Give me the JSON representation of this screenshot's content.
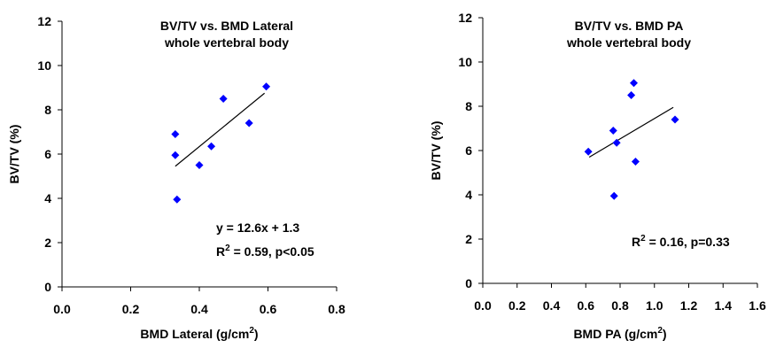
{
  "chart_data": [
    {
      "type": "scatter",
      "title": "BV/TV vs. BMD Lateral",
      "subtitle": "whole vertebral body",
      "xlabel": "BMD Lateral (g/cm²)",
      "ylabel": "BV/TV (%)",
      "xlim": [
        0,
        0.8
      ],
      "ylim": [
        0,
        12
      ],
      "xticks": [
        "0.0",
        "0.2",
        "0.4",
        "0.6",
        "0.8"
      ],
      "yticks": [
        "0",
        "2",
        "4",
        "6",
        "8",
        "10",
        "12"
      ],
      "points": [
        {
          "x": 0.33,
          "y": 6.9
        },
        {
          "x": 0.33,
          "y": 5.95
        },
        {
          "x": 0.335,
          "y": 3.95
        },
        {
          "x": 0.4,
          "y": 5.5
        },
        {
          "x": 0.435,
          "y": 6.35
        },
        {
          "x": 0.47,
          "y": 8.5
        },
        {
          "x": 0.545,
          "y": 7.4
        },
        {
          "x": 0.595,
          "y": 9.05
        }
      ],
      "trendline": {
        "x": [
          0.33,
          0.59
        ],
        "y": [
          5.45,
          8.75
        ]
      },
      "annotations": [
        "y = 12.6x + 1.3",
        "R² = 0.59, p<0.05"
      ],
      "marker_color": "#0000ff",
      "grid": false,
      "legend": "none"
    },
    {
      "type": "scatter",
      "title": "BV/TV vs. BMD PA",
      "subtitle": "whole vertebral body",
      "xlabel": "BMD PA (g/cm²)",
      "ylabel": "BV/TV (%)",
      "xlim": [
        0,
        1.6
      ],
      "ylim": [
        0,
        12
      ],
      "xticks": [
        "0.0",
        "0.2",
        "0.4",
        "0.6",
        "0.8",
        "1.0",
        "1.2",
        "1.4",
        "1.6"
      ],
      "yticks": [
        "0",
        "2",
        "4",
        "6",
        "8",
        "10",
        "12"
      ],
      "points": [
        {
          "x": 0.615,
          "y": 5.95
        },
        {
          "x": 0.76,
          "y": 6.9
        },
        {
          "x": 0.765,
          "y": 3.95
        },
        {
          "x": 0.78,
          "y": 6.35
        },
        {
          "x": 0.865,
          "y": 8.5
        },
        {
          "x": 0.88,
          "y": 9.05
        },
        {
          "x": 0.89,
          "y": 5.5
        },
        {
          "x": 1.12,
          "y": 7.4
        }
      ],
      "trendline": {
        "x": [
          0.62,
          1.11
        ],
        "y": [
          5.7,
          7.95
        ]
      },
      "annotations": [
        "R² = 0.16, p=0.33"
      ],
      "marker_color": "#0000ff",
      "grid": false,
      "legend": "none"
    }
  ]
}
